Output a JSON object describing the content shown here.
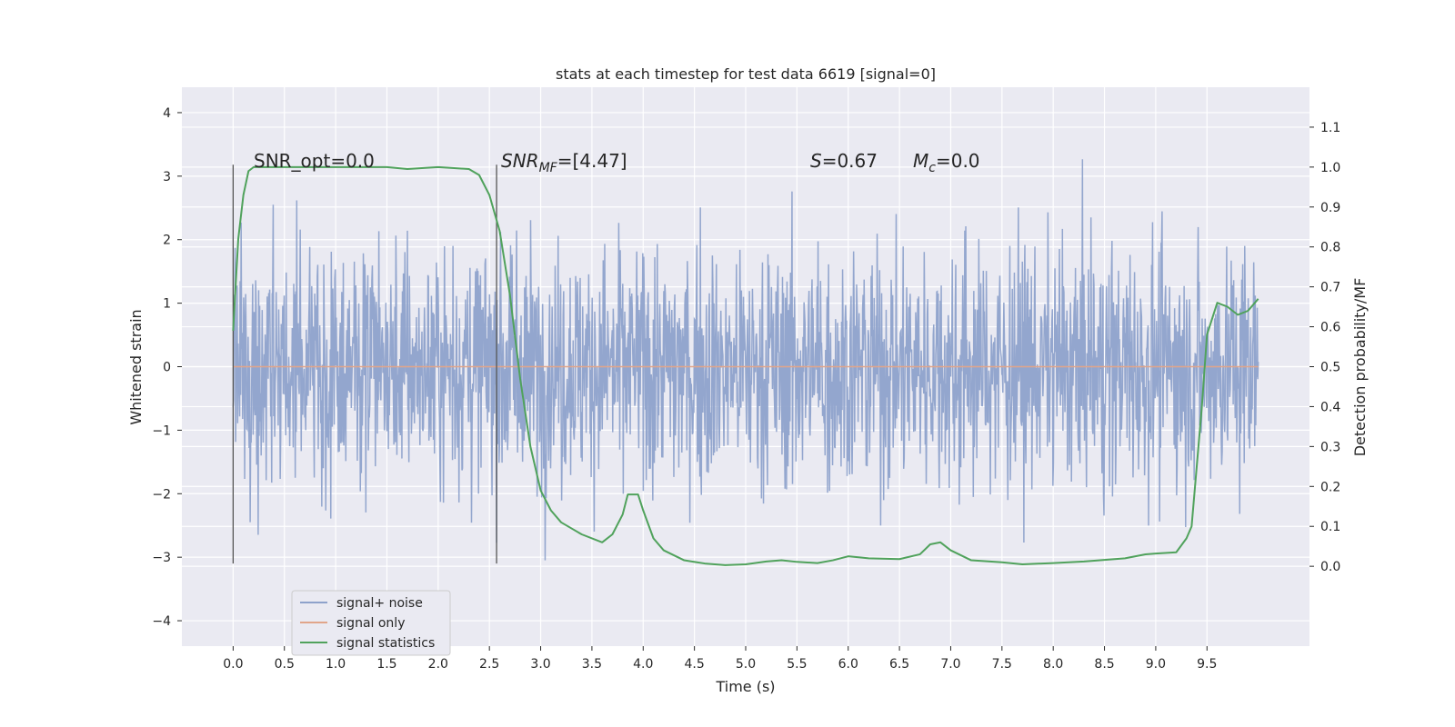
{
  "chart_data": {
    "type": "line",
    "title": "stats at each timestep for test data 6619 [signal=0]",
    "xlabel": "Time (s)",
    "ylabel": "Whitened strain",
    "y2label": "Detection probability/MF",
    "xlim": [
      -0.5,
      10.5
    ],
    "ylim": [
      -4.4,
      4.4
    ],
    "y2lim": [
      -0.2,
      1.2
    ],
    "grid": true,
    "legend_position": "lower-left",
    "xticks": [
      "0.0",
      "0.5",
      "1.0",
      "1.5",
      "2.0",
      "2.5",
      "3.0",
      "3.5",
      "4.0",
      "4.5",
      "5.0",
      "5.5",
      "6.0",
      "6.5",
      "7.0",
      "7.5",
      "8.0",
      "8.5",
      "9.0",
      "9.5"
    ],
    "yticks": [
      "4",
      "3",
      "2",
      "1",
      "0",
      "−1",
      "−2",
      "−3",
      "−4"
    ],
    "y2ticks": [
      "1.1",
      "1.0",
      "0.9",
      "0.8",
      "0.7",
      "0.6",
      "0.5",
      "0.4",
      "0.3",
      "0.2",
      "0.1",
      "0.0"
    ],
    "annotations": {
      "snr_opt": "SNR_opt=0.0",
      "snr_mf_base": "SNR",
      "snr_mf_sub": "MF",
      "snr_mf_rest": "=[4.47]",
      "s_italic": "S",
      "s_rest": "=0.67",
      "mc_base": "M",
      "mc_sub": "c",
      "mc_rest": "=0.0"
    },
    "vlines_x": [
      0.0,
      2.57
    ],
    "series": [
      {
        "name": "signal+ noise",
        "color": "#8ea2cb",
        "x_range": [
          0.0,
          10.0
        ],
        "envelope_note": "dense noise between about -4 and +4"
      },
      {
        "name": "signal only",
        "color": "#e1a58a",
        "x": [
          0.0,
          10.0
        ],
        "values": [
          0.0,
          0.0
        ]
      },
      {
        "name": "signal statistics",
        "color": "#50a25c",
        "x": [
          0.0,
          0.05,
          0.1,
          0.15,
          0.2,
          0.5,
          1.0,
          1.5,
          1.7,
          2.0,
          2.3,
          2.4,
          2.5,
          2.6,
          2.7,
          2.8,
          2.9,
          3.0,
          3.1,
          3.2,
          3.4,
          3.6,
          3.7,
          3.8,
          3.85,
          3.95,
          4.0,
          4.1,
          4.2,
          4.4,
          4.6,
          4.8,
          5.0,
          5.2,
          5.35,
          5.5,
          5.7,
          5.85,
          6.0,
          6.2,
          6.5,
          6.7,
          6.8,
          6.9,
          7.0,
          7.2,
          7.5,
          7.7,
          8.0,
          8.3,
          8.7,
          8.9,
          9.0,
          9.2,
          9.3,
          9.35,
          9.4,
          9.45,
          9.5,
          9.6,
          9.7,
          9.8,
          9.9,
          10.0
        ],
        "values": [
          0.59,
          0.82,
          0.93,
          0.99,
          1.0,
          1.0,
          1.0,
          1.0,
          0.995,
          1.0,
          0.995,
          0.98,
          0.93,
          0.84,
          0.68,
          0.47,
          0.3,
          0.19,
          0.14,
          0.11,
          0.08,
          0.06,
          0.08,
          0.13,
          0.18,
          0.18,
          0.14,
          0.07,
          0.04,
          0.015,
          0.007,
          0.003,
          0.005,
          0.012,
          0.015,
          0.011,
          0.008,
          0.015,
          0.025,
          0.02,
          0.018,
          0.03,
          0.055,
          0.06,
          0.04,
          0.015,
          0.01,
          0.005,
          0.008,
          0.012,
          0.02,
          0.03,
          0.032,
          0.035,
          0.07,
          0.1,
          0.25,
          0.4,
          0.58,
          0.66,
          0.65,
          0.63,
          0.64,
          0.67
        ]
      }
    ]
  }
}
